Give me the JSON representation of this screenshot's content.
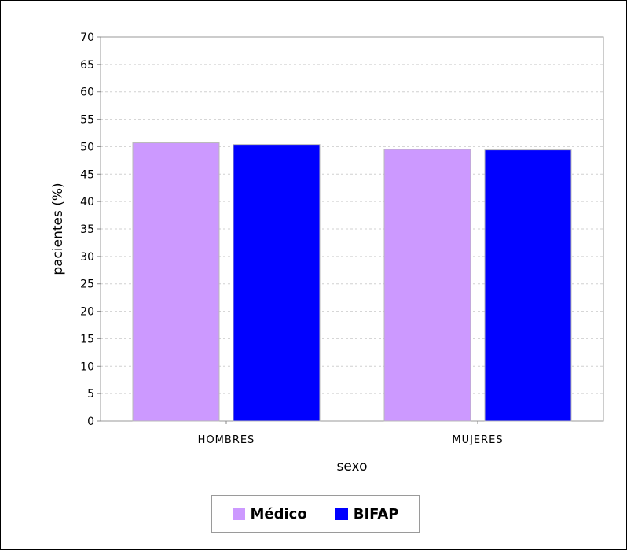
{
  "chart_data": {
    "type": "bar",
    "categories": [
      "HOMBRES",
      "MUJERES"
    ],
    "series": [
      {
        "name": "Médico",
        "color": "#cc99ff",
        "values": [
          50.7,
          49.5
        ]
      },
      {
        "name": "BIFAP",
        "color": "#0000ff",
        "values": [
          50.4,
          49.4
        ]
      }
    ],
    "xlabel": "sexo",
    "ylabel": "pacientes (%)",
    "ylim": [
      0,
      70
    ],
    "yticks": [
      "0",
      "5",
      "10",
      "15",
      "20",
      "25",
      "30",
      "35",
      "40",
      "45",
      "50",
      "55",
      "60",
      "65",
      "70"
    ],
    "grid": true,
    "legend_position": "bottom-center"
  }
}
